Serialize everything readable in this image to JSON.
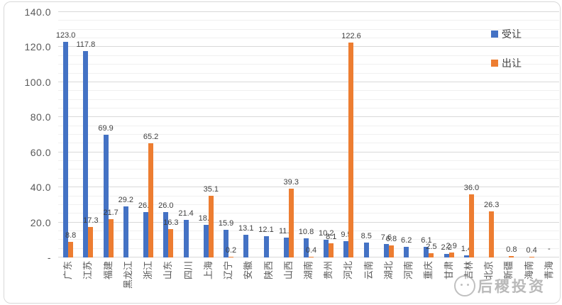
{
  "legend": {
    "items": [
      {
        "label": "受让",
        "color": "#4472C4"
      },
      {
        "label": "出让",
        "color": "#ED7D31"
      }
    ]
  },
  "watermark": {
    "text": "后稷投资"
  },
  "colors": {
    "grid_major": "#D9D9D9",
    "grid_minor": "#F0F0F0",
    "tick_text": "#595959",
    "label_text": "#404040",
    "series_blue": "#4472C4",
    "series_orange": "#ED7D31"
  },
  "chart_data": {
    "type": "bar",
    "title": "",
    "xlabel": "",
    "ylabel": "",
    "categories": [
      "广东",
      "江苏",
      "福建",
      "黑龙江",
      "浙江",
      "山东",
      "四川",
      "上海",
      "辽宁",
      "安徽",
      "陕西",
      "山西",
      "湖南",
      "贵州",
      "河北",
      "云南",
      "湖北",
      "河南",
      "重庆",
      "甘肃",
      "吉林",
      "北京",
      "新疆",
      "海南",
      "青海"
    ],
    "series": [
      {
        "name": "受让",
        "color": "#4472C4",
        "values": [
          123.0,
          117.8,
          69.9,
          29.2,
          26.1,
          26.0,
          21.4,
          18.6,
          15.9,
          13.1,
          12.1,
          11.2,
          10.8,
          10.2,
          9.5,
          8.5,
          7.6,
          6.2,
          6.1,
          2.2,
          1.4,
          null,
          null,
          null,
          null
        ]
      },
      {
        "name": "出让",
        "color": "#ED7D31",
        "values": [
          8.8,
          17.3,
          21.7,
          null,
          65.2,
          16.3,
          null,
          35.1,
          0.2,
          null,
          null,
          39.3,
          0.4,
          8.1,
          122.6,
          null,
          6.8,
          null,
          2.5,
          2.9,
          36.0,
          26.3,
          0.8,
          0.4,
          null
        ]
      }
    ],
    "ylim": [
      0,
      140
    ],
    "yticks": [
      {
        "v": 140,
        "label": "140.0"
      },
      {
        "v": 120,
        "label": "120.0"
      },
      {
        "v": 100,
        "label": "100.0"
      },
      {
        "v": 80,
        "label": "80.0"
      },
      {
        "v": 60,
        "label": "60.0"
      },
      {
        "v": 40,
        "label": "40.0"
      },
      {
        "v": 20,
        "label": "20.0"
      },
      {
        "v": 0,
        "label": "-"
      }
    ],
    "null_label": "-",
    "grid": true,
    "minor_grid_step": 5,
    "legend_position": "top-right",
    "data_labels": true
  }
}
